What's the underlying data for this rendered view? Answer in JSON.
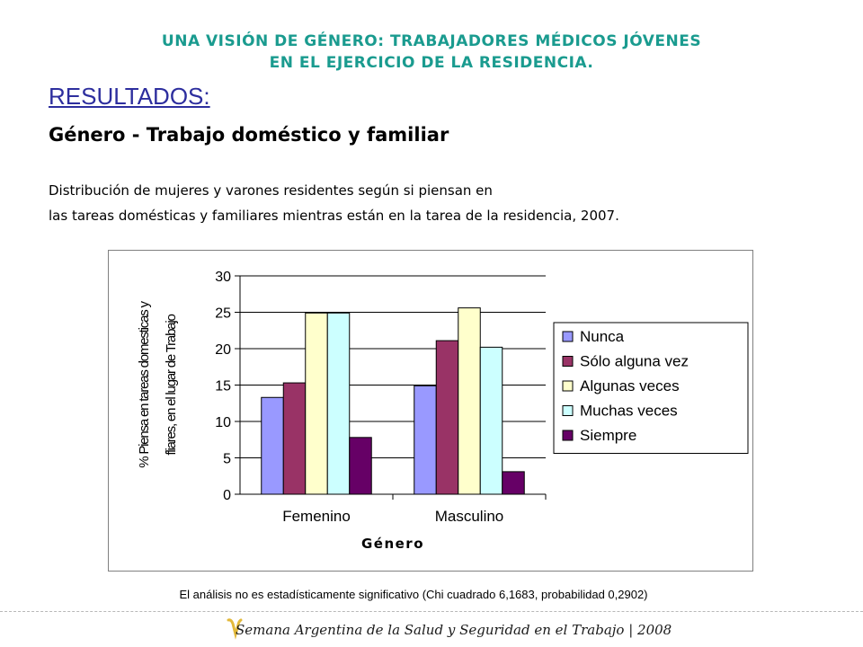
{
  "header": {
    "line1": "UNA VISIÓN DE GÉNERO: TRABAJADORES MÉDICOS JÓVENES",
    "line2": "EN EL EJERCICIO DE LA RESIDENCIA."
  },
  "section_title": "RESULTADOS:",
  "subtitle": "Género - Trabajo doméstico y familiar",
  "description": {
    "line1": "Distribución de mujeres y varones residentes según si piensan en",
    "line2": "las tareas domésticas y familiares mientras están en la tarea de la residencia, 2007."
  },
  "colors": {
    "title": "#1a9b8f",
    "section_title": "#2d2e9e"
  },
  "chart_data": {
    "type": "bar",
    "categories": [
      "Femenino",
      "Masculino"
    ],
    "series": [
      {
        "name": "Nunca",
        "color": "#9999ff",
        "values": [
          13.3,
          14.9
        ]
      },
      {
        "name": "Sólo alguna vez",
        "color": "#993366",
        "values": [
          15.3,
          21.1
        ]
      },
      {
        "name": "Algunas  veces",
        "color": "#ffffcc",
        "values": [
          24.9,
          25.6
        ]
      },
      {
        "name": "Muchas veces",
        "color": "#ccffff",
        "values": [
          24.9,
          20.2
        ]
      },
      {
        "name": "Siempre",
        "color": "#660066",
        "values": [
          7.8,
          3.1
        ]
      }
    ],
    "xlabel": "Género",
    "ylabel_line1": "% Piensa en tareas domesticas y",
    "ylabel_line2": "fliares, en el lugar de Trabajo",
    "ylim": [
      0,
      30
    ],
    "yticks": [
      0,
      5,
      10,
      15,
      20,
      25,
      30
    ],
    "grid": true,
    "legend_position": "right"
  },
  "note": "El análisis no es estadísticamente significativo (Chi cuadrado 6,1683, probabilidad 0,2902)",
  "footer": {
    "text": "Semana Argentina de la Salud y Seguridad en el Trabajo | 2008"
  }
}
